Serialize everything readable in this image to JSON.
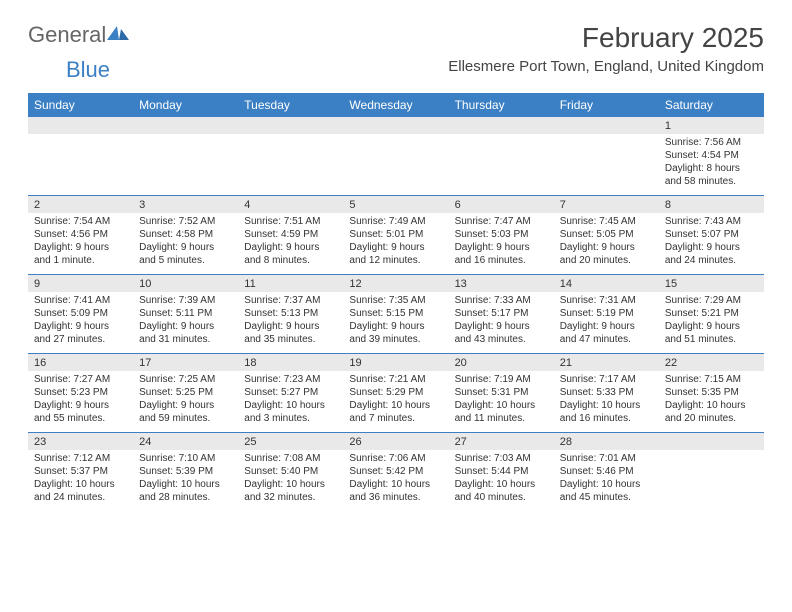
{
  "brand": {
    "part1": "General",
    "part2": "Blue"
  },
  "title": "February 2025",
  "location": "Ellesmere Port Town, England, United Kingdom",
  "colors": {
    "header_bg": "#3b7fc4",
    "band_bg": "#e9e9e9",
    "text": "#333333",
    "background": "#ffffff"
  },
  "day_names": [
    "Sunday",
    "Monday",
    "Tuesday",
    "Wednesday",
    "Thursday",
    "Friday",
    "Saturday"
  ],
  "weeks": [
    [
      {
        "date": "",
        "sunrise": "",
        "sunset": "",
        "daylight": ""
      },
      {
        "date": "",
        "sunrise": "",
        "sunset": "",
        "daylight": ""
      },
      {
        "date": "",
        "sunrise": "",
        "sunset": "",
        "daylight": ""
      },
      {
        "date": "",
        "sunrise": "",
        "sunset": "",
        "daylight": ""
      },
      {
        "date": "",
        "sunrise": "",
        "sunset": "",
        "daylight": ""
      },
      {
        "date": "",
        "sunrise": "",
        "sunset": "",
        "daylight": ""
      },
      {
        "date": "1",
        "sunrise": "Sunrise: 7:56 AM",
        "sunset": "Sunset: 4:54 PM",
        "daylight": "Daylight: 8 hours and 58 minutes."
      }
    ],
    [
      {
        "date": "2",
        "sunrise": "Sunrise: 7:54 AM",
        "sunset": "Sunset: 4:56 PM",
        "daylight": "Daylight: 9 hours and 1 minute."
      },
      {
        "date": "3",
        "sunrise": "Sunrise: 7:52 AM",
        "sunset": "Sunset: 4:58 PM",
        "daylight": "Daylight: 9 hours and 5 minutes."
      },
      {
        "date": "4",
        "sunrise": "Sunrise: 7:51 AM",
        "sunset": "Sunset: 4:59 PM",
        "daylight": "Daylight: 9 hours and 8 minutes."
      },
      {
        "date": "5",
        "sunrise": "Sunrise: 7:49 AM",
        "sunset": "Sunset: 5:01 PM",
        "daylight": "Daylight: 9 hours and 12 minutes."
      },
      {
        "date": "6",
        "sunrise": "Sunrise: 7:47 AM",
        "sunset": "Sunset: 5:03 PM",
        "daylight": "Daylight: 9 hours and 16 minutes."
      },
      {
        "date": "7",
        "sunrise": "Sunrise: 7:45 AM",
        "sunset": "Sunset: 5:05 PM",
        "daylight": "Daylight: 9 hours and 20 minutes."
      },
      {
        "date": "8",
        "sunrise": "Sunrise: 7:43 AM",
        "sunset": "Sunset: 5:07 PM",
        "daylight": "Daylight: 9 hours and 24 minutes."
      }
    ],
    [
      {
        "date": "9",
        "sunrise": "Sunrise: 7:41 AM",
        "sunset": "Sunset: 5:09 PM",
        "daylight": "Daylight: 9 hours and 27 minutes."
      },
      {
        "date": "10",
        "sunrise": "Sunrise: 7:39 AM",
        "sunset": "Sunset: 5:11 PM",
        "daylight": "Daylight: 9 hours and 31 minutes."
      },
      {
        "date": "11",
        "sunrise": "Sunrise: 7:37 AM",
        "sunset": "Sunset: 5:13 PM",
        "daylight": "Daylight: 9 hours and 35 minutes."
      },
      {
        "date": "12",
        "sunrise": "Sunrise: 7:35 AM",
        "sunset": "Sunset: 5:15 PM",
        "daylight": "Daylight: 9 hours and 39 minutes."
      },
      {
        "date": "13",
        "sunrise": "Sunrise: 7:33 AM",
        "sunset": "Sunset: 5:17 PM",
        "daylight": "Daylight: 9 hours and 43 minutes."
      },
      {
        "date": "14",
        "sunrise": "Sunrise: 7:31 AM",
        "sunset": "Sunset: 5:19 PM",
        "daylight": "Daylight: 9 hours and 47 minutes."
      },
      {
        "date": "15",
        "sunrise": "Sunrise: 7:29 AM",
        "sunset": "Sunset: 5:21 PM",
        "daylight": "Daylight: 9 hours and 51 minutes."
      }
    ],
    [
      {
        "date": "16",
        "sunrise": "Sunrise: 7:27 AM",
        "sunset": "Sunset: 5:23 PM",
        "daylight": "Daylight: 9 hours and 55 minutes."
      },
      {
        "date": "17",
        "sunrise": "Sunrise: 7:25 AM",
        "sunset": "Sunset: 5:25 PM",
        "daylight": "Daylight: 9 hours and 59 minutes."
      },
      {
        "date": "18",
        "sunrise": "Sunrise: 7:23 AM",
        "sunset": "Sunset: 5:27 PM",
        "daylight": "Daylight: 10 hours and 3 minutes."
      },
      {
        "date": "19",
        "sunrise": "Sunrise: 7:21 AM",
        "sunset": "Sunset: 5:29 PM",
        "daylight": "Daylight: 10 hours and 7 minutes."
      },
      {
        "date": "20",
        "sunrise": "Sunrise: 7:19 AM",
        "sunset": "Sunset: 5:31 PM",
        "daylight": "Daylight: 10 hours and 11 minutes."
      },
      {
        "date": "21",
        "sunrise": "Sunrise: 7:17 AM",
        "sunset": "Sunset: 5:33 PM",
        "daylight": "Daylight: 10 hours and 16 minutes."
      },
      {
        "date": "22",
        "sunrise": "Sunrise: 7:15 AM",
        "sunset": "Sunset: 5:35 PM",
        "daylight": "Daylight: 10 hours and 20 minutes."
      }
    ],
    [
      {
        "date": "23",
        "sunrise": "Sunrise: 7:12 AM",
        "sunset": "Sunset: 5:37 PM",
        "daylight": "Daylight: 10 hours and 24 minutes."
      },
      {
        "date": "24",
        "sunrise": "Sunrise: 7:10 AM",
        "sunset": "Sunset: 5:39 PM",
        "daylight": "Daylight: 10 hours and 28 minutes."
      },
      {
        "date": "25",
        "sunrise": "Sunrise: 7:08 AM",
        "sunset": "Sunset: 5:40 PM",
        "daylight": "Daylight: 10 hours and 32 minutes."
      },
      {
        "date": "26",
        "sunrise": "Sunrise: 7:06 AM",
        "sunset": "Sunset: 5:42 PM",
        "daylight": "Daylight: 10 hours and 36 minutes."
      },
      {
        "date": "27",
        "sunrise": "Sunrise: 7:03 AM",
        "sunset": "Sunset: 5:44 PM",
        "daylight": "Daylight: 10 hours and 40 minutes."
      },
      {
        "date": "28",
        "sunrise": "Sunrise: 7:01 AM",
        "sunset": "Sunset: 5:46 PM",
        "daylight": "Daylight: 10 hours and 45 minutes."
      },
      {
        "date": "",
        "sunrise": "",
        "sunset": "",
        "daylight": ""
      }
    ]
  ]
}
